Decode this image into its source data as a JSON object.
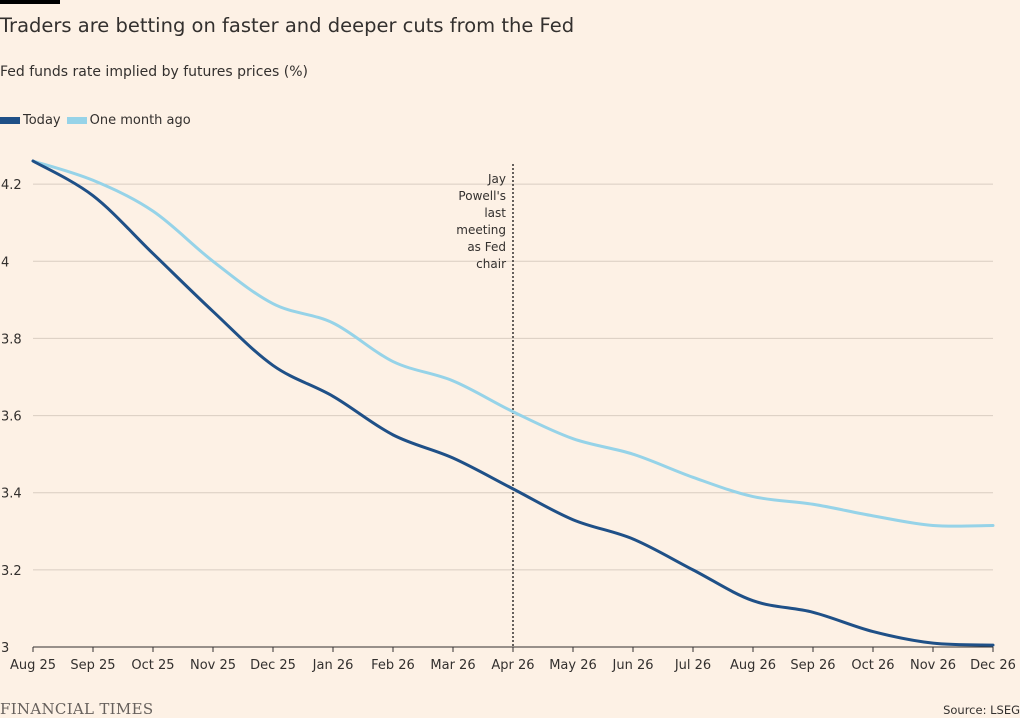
{
  "chart_data": {
    "type": "line",
    "title": "Traders are betting on faster and deeper cuts from the Fed",
    "subtitle": "Fed funds rate implied by futures prices (%)",
    "categories": [
      "Aug 25",
      "Sep 25",
      "Oct 25",
      "Nov 25",
      "Dec 25",
      "Jan 26",
      "Feb 26",
      "Mar 26",
      "Apr 26",
      "May 26",
      "Jun 26",
      "Jul 26",
      "Aug 26",
      "Sep 26",
      "Oct 26",
      "Nov 26",
      "Dec 26"
    ],
    "yticks": [
      "3",
      "3.2",
      "3.4",
      "3.6",
      "3.8",
      "4",
      "4.2"
    ],
    "ylim": [
      3,
      4.26
    ],
    "legend": "top-left",
    "grid": true,
    "series": [
      {
        "name": "Today",
        "color": "#1f5087",
        "values": [
          4.26,
          4.17,
          4.02,
          3.87,
          3.73,
          3.65,
          3.55,
          3.49,
          3.41,
          3.33,
          3.28,
          3.2,
          3.12,
          3.09,
          3.04,
          3.01,
          3.005
        ]
      },
      {
        "name": "One month ago",
        "color": "#96d3e8",
        "values": [
          4.26,
          4.21,
          4.13,
          4.0,
          3.89,
          3.84,
          3.74,
          3.69,
          3.61,
          3.54,
          3.5,
          3.44,
          3.39,
          3.37,
          3.34,
          3.315,
          3.315
        ]
      }
    ],
    "annotation": {
      "at": "Apr 26",
      "lines": [
        "Jay",
        "Powell's",
        "last",
        "meeting",
        "as Fed",
        "chair"
      ]
    }
  },
  "footer": {
    "logo": "FINANCIAL TIMES",
    "source": "Source: LSEG"
  }
}
